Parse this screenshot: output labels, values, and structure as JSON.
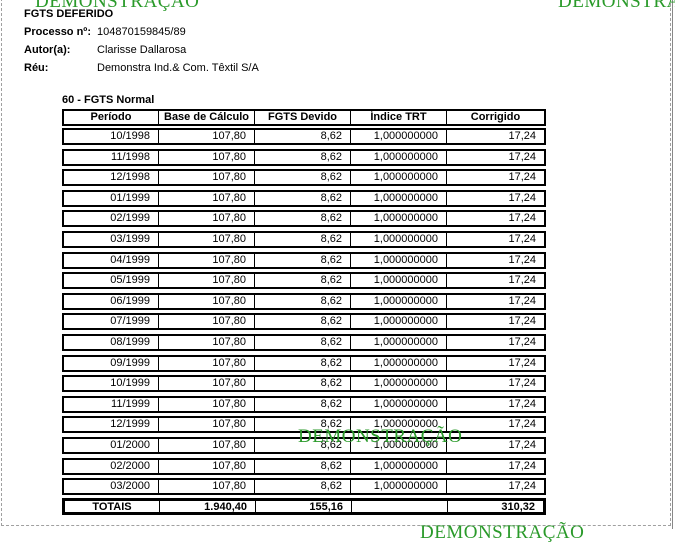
{
  "watermark": "DEMONSTRAÇÃO",
  "header": {
    "title": "FGTS DEFERIDO",
    "processo_label": "Processo nº:",
    "processo": "104870159845/89",
    "autor_label": "Autor(a):",
    "autor": "Clarisse Dallarosa",
    "reu_label": "Réu:",
    "reu": "Demonstra Ind.& Com. Têxtil S/A"
  },
  "section_title": "60 - FGTS Normal",
  "table": {
    "columns": [
      "Período",
      "Base de Cálculo",
      "FGTS Devido",
      "Índice TRT",
      "Corrigido"
    ],
    "rows": [
      [
        "10/1998",
        "107,80",
        "8,62",
        "1,000000000",
        "17,24"
      ],
      [
        "11/1998",
        "107,80",
        "8,62",
        "1,000000000",
        "17,24"
      ],
      [
        "12/1998",
        "107,80",
        "8,62",
        "1,000000000",
        "17,24"
      ],
      [
        "01/1999",
        "107,80",
        "8,62",
        "1,000000000",
        "17,24"
      ],
      [
        "02/1999",
        "107,80",
        "8,62",
        "1,000000000",
        "17,24"
      ],
      [
        "03/1999",
        "107,80",
        "8,62",
        "1,000000000",
        "17,24"
      ],
      [
        "04/1999",
        "107,80",
        "8,62",
        "1,000000000",
        "17,24"
      ],
      [
        "05/1999",
        "107,80",
        "8,62",
        "1,000000000",
        "17,24"
      ],
      [
        "06/1999",
        "107,80",
        "8,62",
        "1,000000000",
        "17,24"
      ],
      [
        "07/1999",
        "107,80",
        "8,62",
        "1,000000000",
        "17,24"
      ],
      [
        "08/1999",
        "107,80",
        "8,62",
        "1,000000000",
        "17,24"
      ],
      [
        "09/1999",
        "107,80",
        "8,62",
        "1,000000000",
        "17,24"
      ],
      [
        "10/1999",
        "107,80",
        "8,62",
        "1,000000000",
        "17,24"
      ],
      [
        "11/1999",
        "107,80",
        "8,62",
        "1,000000000",
        "17,24"
      ],
      [
        "12/1999",
        "107,80",
        "8,62",
        "1,000000000",
        "17,24"
      ],
      [
        "01/2000",
        "107,80",
        "8,62",
        "1,000000000",
        "17,24"
      ],
      [
        "02/2000",
        "107,80",
        "8,62",
        "1,000000000",
        "17,24"
      ],
      [
        "03/2000",
        "107,80",
        "8,62",
        "1,000000000",
        "17,24"
      ]
    ],
    "totals": [
      "TOTAIS",
      "1.940,40",
      "155,16",
      "",
      "310,32"
    ]
  }
}
